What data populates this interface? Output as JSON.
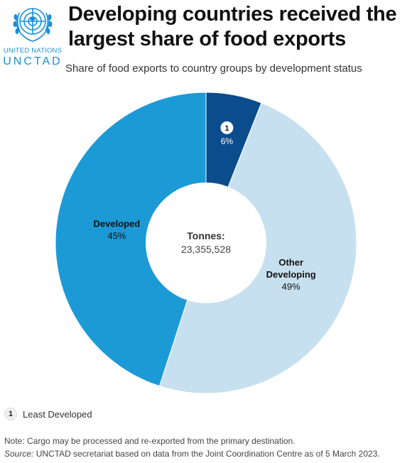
{
  "org": {
    "line1": "UNITED NATIONS",
    "line2": "UNCTAD"
  },
  "title": "Developing countries received the largest share of food exports",
  "subtitle": "Share of food exports to country groups by development status",
  "center": {
    "label": "Tonnes:",
    "value": "23,355,528"
  },
  "legend": {
    "badge": "1",
    "text": "Least Developed"
  },
  "note": "Note: Cargo may be processed and re-exported from the primary destination.",
  "source": {
    "label": "Source:",
    "text": " UNCTAD secretariat based on data from the Joint Coordination Centre as of 5 March 2023."
  },
  "colors": {
    "least_developed": "#0b4c8c",
    "other_developing": "#c7e0ef",
    "developed": "#1c9ad6"
  },
  "chart_data": {
    "type": "pie",
    "donut": true,
    "slices": [
      {
        "label": "1",
        "value": 6,
        "value_label": "6%",
        "color": "#0b4c8c"
      },
      {
        "label": "Other\nDeveloping",
        "value": 49,
        "value_label": "49%",
        "color": "#c7e0ef"
      },
      {
        "label": "Developed",
        "value": 45,
        "value_label": "45%",
        "color": "#1c9ad6"
      }
    ],
    "start": "top, clockwise"
  }
}
